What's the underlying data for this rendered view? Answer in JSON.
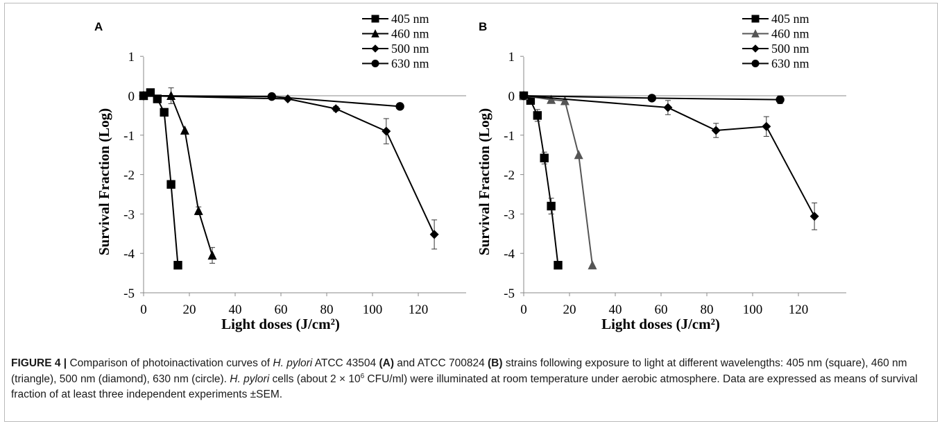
{
  "chart_data": [
    {
      "panel": "A",
      "type": "line",
      "xlabel": "Light doses (J/cm²)",
      "ylabel": "Survival Fraction (Log)",
      "xlim": [
        0,
        130
      ],
      "ylim": [
        -5,
        1
      ],
      "xticks": [
        0,
        20,
        40,
        60,
        80,
        100,
        120
      ],
      "yticks": [
        1,
        0,
        -1,
        -2,
        -3,
        -4,
        -5
      ],
      "legend_position": "top-right",
      "grid": false,
      "series": [
        {
          "name": "405 nm",
          "marker": "square",
          "color": "#000000",
          "x": [
            0,
            3,
            6,
            9,
            12,
            15
          ],
          "y": [
            0,
            0.08,
            -0.08,
            -0.42,
            -2.25,
            -4.3
          ],
          "err": [
            0,
            0,
            0,
            0.05,
            0.1,
            0
          ]
        },
        {
          "name": "460 nm",
          "marker": "triangle",
          "color": "#000000",
          "x": [
            0,
            12,
            18,
            24,
            30
          ],
          "y": [
            0,
            0,
            -0.88,
            -2.92,
            -4.05
          ],
          "err": [
            0,
            0.2,
            0,
            0.1,
            0.2
          ]
        },
        {
          "name": "500 nm",
          "marker": "diamond",
          "color": "#000000",
          "x": [
            0,
            63,
            84,
            106,
            127
          ],
          "y": [
            0,
            -0.08,
            -0.33,
            -0.9,
            -3.52
          ],
          "err": [
            0,
            0,
            0.06,
            0.32,
            0.37
          ]
        },
        {
          "name": "630 nm",
          "marker": "circle",
          "color": "#000000",
          "x": [
            0,
            56,
            112
          ],
          "y": [
            0,
            -0.02,
            -0.27
          ],
          "err": [
            0,
            0,
            0
          ]
        }
      ]
    },
    {
      "panel": "B",
      "type": "line",
      "xlabel": "Light doses (J/cm²)",
      "ylabel": "Survival Fraction (Log)",
      "xlim": [
        0,
        130
      ],
      "ylim": [
        -5,
        1
      ],
      "xticks": [
        0,
        20,
        40,
        60,
        80,
        100,
        120
      ],
      "yticks": [
        1,
        0,
        -1,
        -2,
        -3,
        -4,
        -5
      ],
      "legend_position": "top-right",
      "grid": false,
      "series": [
        {
          "name": "405 nm",
          "marker": "square",
          "color": "#000000",
          "x": [
            0,
            3,
            6,
            9,
            12,
            15
          ],
          "y": [
            0,
            -0.12,
            -0.5,
            -1.58,
            -2.8,
            -4.3
          ],
          "err": [
            0,
            0,
            0.15,
            0.15,
            0.2,
            0
          ]
        },
        {
          "name": "460 nm",
          "marker": "triangle",
          "color": "#555555",
          "x": [
            0,
            12,
            18,
            24,
            30
          ],
          "y": [
            0,
            -0.1,
            -0.13,
            -1.5,
            -4.3
          ],
          "err": [
            0,
            0,
            0,
            0,
            0
          ]
        },
        {
          "name": "500 nm",
          "marker": "diamond",
          "color": "#000000",
          "x": [
            0,
            63,
            84,
            106,
            127
          ],
          "y": [
            0,
            -0.3,
            -0.88,
            -0.78,
            -3.06
          ],
          "err": [
            0,
            0.18,
            0.18,
            0.25,
            0.34
          ]
        },
        {
          "name": "630 nm",
          "marker": "circle",
          "color": "#000000",
          "x": [
            0,
            56,
            112
          ],
          "y": [
            0,
            -0.06,
            -0.1
          ],
          "err": [
            0,
            0,
            0.1
          ]
        }
      ]
    }
  ],
  "caption": {
    "label": "FIGURE 4 |",
    "t1": " Comparison of photoinactivation curves of ",
    "species1": "H. pylori",
    "t2": " ATCC 43504 ",
    "panel_a": "(A)",
    "t3": " and ATCC 700824 ",
    "panel_b": "(B)",
    "t4": " strains following exposure to light at different wavelengths: 405 nm (square), 460 nm (triangle), 500 nm (diamond), 630 nm (circle). ",
    "species2": "H. pylori",
    "t5": " cells (about 2 × 10",
    "t5_sup": "6",
    "t6": " CFU/ml) were illuminated at room temperature under aerobic atmosphere. Data are expressed as means of survival fraction of at least three independent experiments ±SEM."
  }
}
